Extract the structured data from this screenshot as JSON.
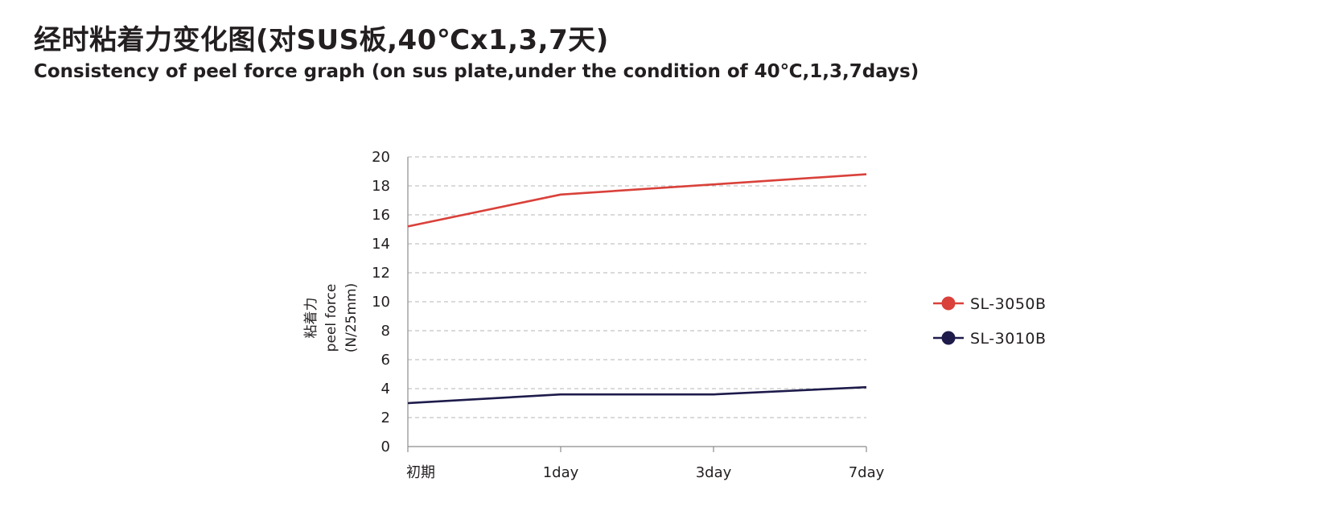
{
  "title_cn": "经时粘着力变化图(对SUS板,40℃x1,3,7天)",
  "title_en": "Consistency of peel force graph (on sus plate,under the condition of 40℃,1,3,7days)",
  "chart_data": {
    "type": "line",
    "categories": [
      "初期",
      "1day",
      "3day",
      "7day"
    ],
    "series": [
      {
        "name": "SL-3050B",
        "color": "#d9413a",
        "values": [
          15.2,
          17.4,
          18.1,
          18.8
        ]
      },
      {
        "name": "SL-3010B",
        "color": "#1e1b4b",
        "values": [
          3.0,
          3.6,
          3.6,
          4.1
        ]
      }
    ],
    "ylabel": [
      "粘着力",
      "peel force",
      "(N/25mm)"
    ],
    "ylim": [
      0,
      20
    ],
    "yticks": [
      0,
      2,
      4,
      6,
      8,
      10,
      12,
      14,
      16,
      18,
      20
    ],
    "grid": true,
    "legend_position": "right"
  }
}
